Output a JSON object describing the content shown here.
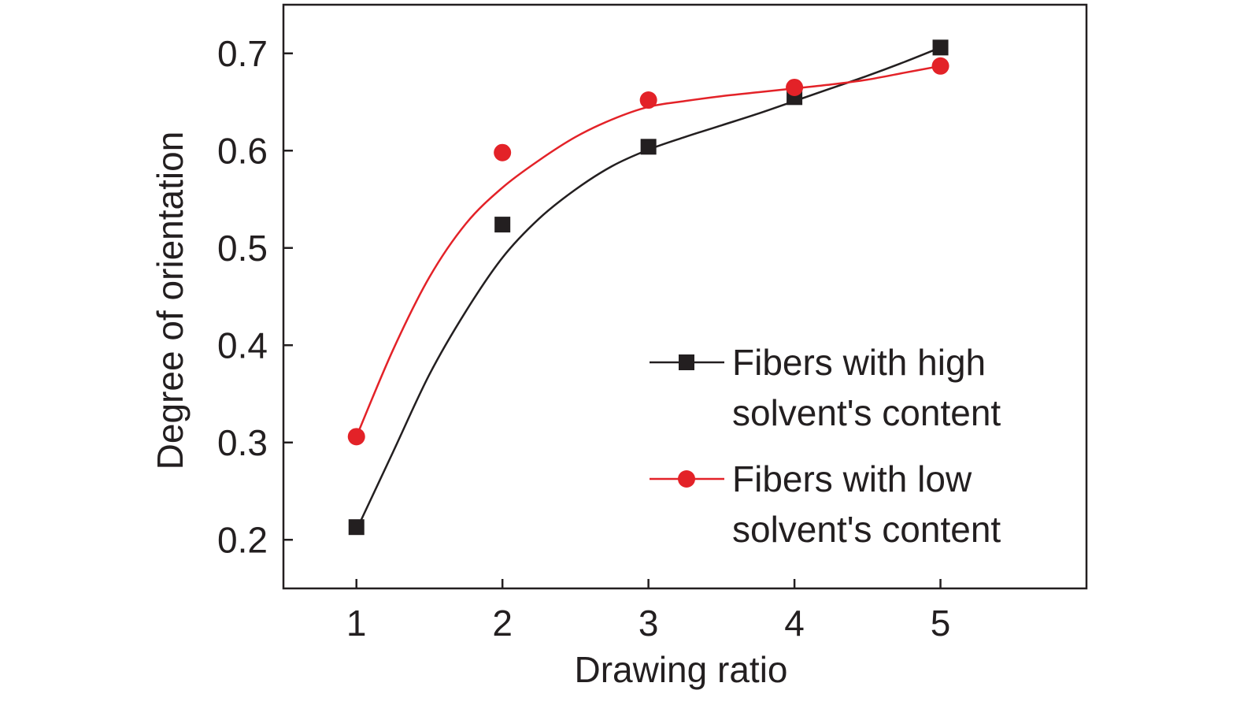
{
  "chart_data": {
    "type": "scatter",
    "title": "",
    "xlabel": "Drawing ratio",
    "ylabel": "Degree of orientation",
    "xlim": [
      0.5,
      6.0
    ],
    "ylim": [
      0.15,
      0.75
    ],
    "x_ticks": [
      {
        "value": 1,
        "label": "1"
      },
      {
        "value": 2,
        "label": "2"
      },
      {
        "value": 3,
        "label": "3"
      },
      {
        "value": 4,
        "label": "4"
      },
      {
        "value": 5,
        "label": "5"
      }
    ],
    "y_ticks": [
      {
        "value": 0.2,
        "label": "0.2"
      },
      {
        "value": 0.3,
        "label": "0.3"
      },
      {
        "value": 0.4,
        "label": "0.4"
      },
      {
        "value": 0.5,
        "label": "0.5"
      },
      {
        "value": 0.6,
        "label": "0.6"
      },
      {
        "value": 0.7,
        "label": "0.7"
      }
    ],
    "grid": false,
    "legend_position": "bottom-right",
    "series": [
      {
        "name": "Fibers with high solvent's content",
        "legend_lines": [
          "Fibers with high",
          "solvent's content"
        ],
        "marker": "square",
        "color": "#231f20",
        "x": [
          1,
          2,
          3,
          4,
          5
        ],
        "y": [
          0.213,
          0.524,
          0.604,
          0.655,
          0.706
        ],
        "fit_curve": [
          [
            1.0,
            0.21
          ],
          [
            1.25,
            0.29
          ],
          [
            1.5,
            0.37
          ],
          [
            1.75,
            0.435
          ],
          [
            2.0,
            0.49
          ],
          [
            2.25,
            0.53
          ],
          [
            2.5,
            0.56
          ],
          [
            2.75,
            0.584
          ],
          [
            3.0,
            0.601
          ],
          [
            3.25,
            0.614
          ],
          [
            3.5,
            0.626
          ],
          [
            3.75,
            0.638
          ],
          [
            4.0,
            0.651
          ],
          [
            4.25,
            0.664
          ],
          [
            4.5,
            0.677
          ],
          [
            4.75,
            0.691
          ],
          [
            5.0,
            0.706
          ]
        ]
      },
      {
        "name": "Fibers with low solvent's content",
        "legend_lines": [
          "Fibers with low",
          "solvent's content"
        ],
        "marker": "circle",
        "color": "#e32228",
        "x": [
          1,
          2,
          3,
          4,
          5
        ],
        "y": [
          0.306,
          0.598,
          0.652,
          0.665,
          0.687
        ],
        "fit_curve": [
          [
            1.0,
            0.306
          ],
          [
            1.25,
            0.395
          ],
          [
            1.5,
            0.47
          ],
          [
            1.75,
            0.525
          ],
          [
            2.0,
            0.562
          ],
          [
            2.25,
            0.59
          ],
          [
            2.5,
            0.614
          ],
          [
            2.75,
            0.632
          ],
          [
            3.0,
            0.645
          ],
          [
            3.25,
            0.651
          ],
          [
            3.5,
            0.656
          ],
          [
            3.75,
            0.66
          ],
          [
            4.0,
            0.664
          ],
          [
            4.25,
            0.668
          ],
          [
            4.5,
            0.673
          ],
          [
            4.75,
            0.68
          ],
          [
            5.0,
            0.687
          ]
        ]
      }
    ]
  }
}
